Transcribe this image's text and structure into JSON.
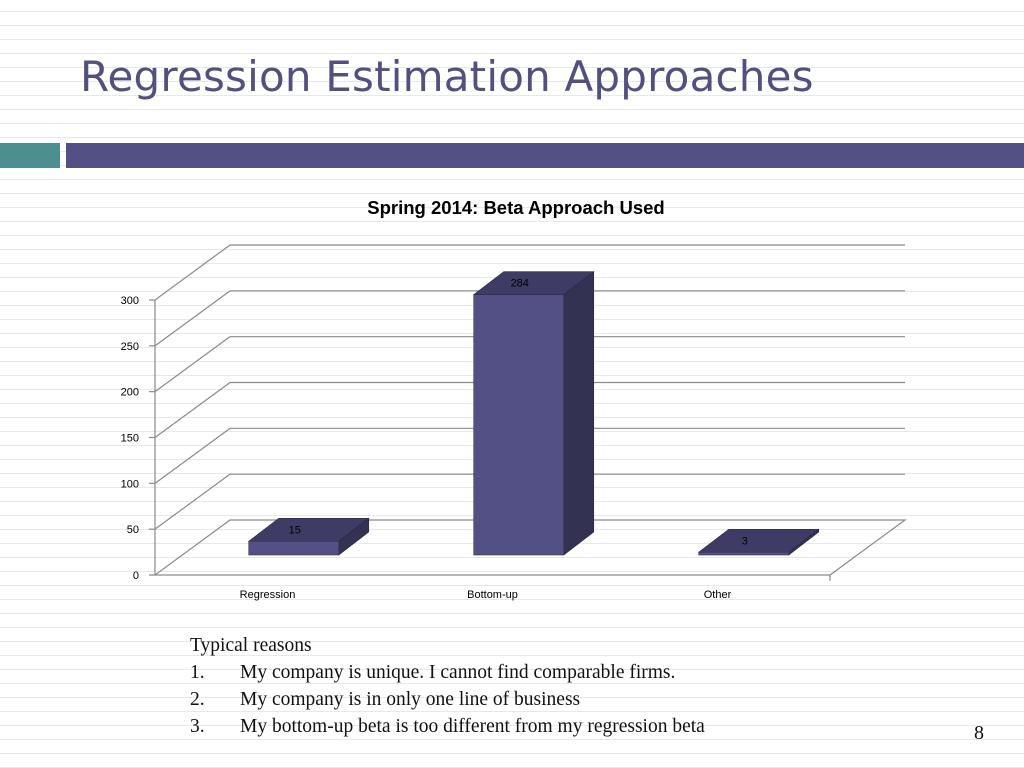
{
  "slide": {
    "title": "Regression Estimation Approaches",
    "page_number": "8",
    "accent_colors": {
      "teal": "#4d8f91",
      "purple": "#535086"
    }
  },
  "chart_data": {
    "type": "bar",
    "title": "Spring 2014: Beta Approach Used",
    "categories": [
      "Regression",
      "Bottom-up",
      "Other"
    ],
    "values": [
      15,
      284,
      3
    ],
    "data_labels": [
      "15",
      "284",
      "3"
    ],
    "ylim": [
      0,
      300
    ],
    "yticks": [
      "0",
      "50",
      "100",
      "150",
      "200",
      "250",
      "300"
    ],
    "xlabel": "",
    "ylabel": "",
    "grid": true,
    "style": "3d-column",
    "bar_color": "#535086"
  },
  "reasons": {
    "heading": "Typical reasons",
    "items": [
      {
        "num": "1.",
        "text": "My company is unique. I cannot find comparable firms."
      },
      {
        "num": "2.",
        "text": "My company is in only one line of business"
      },
      {
        "num": "3.",
        "text": "My bottom-up beta is too different from my regression beta"
      }
    ]
  }
}
